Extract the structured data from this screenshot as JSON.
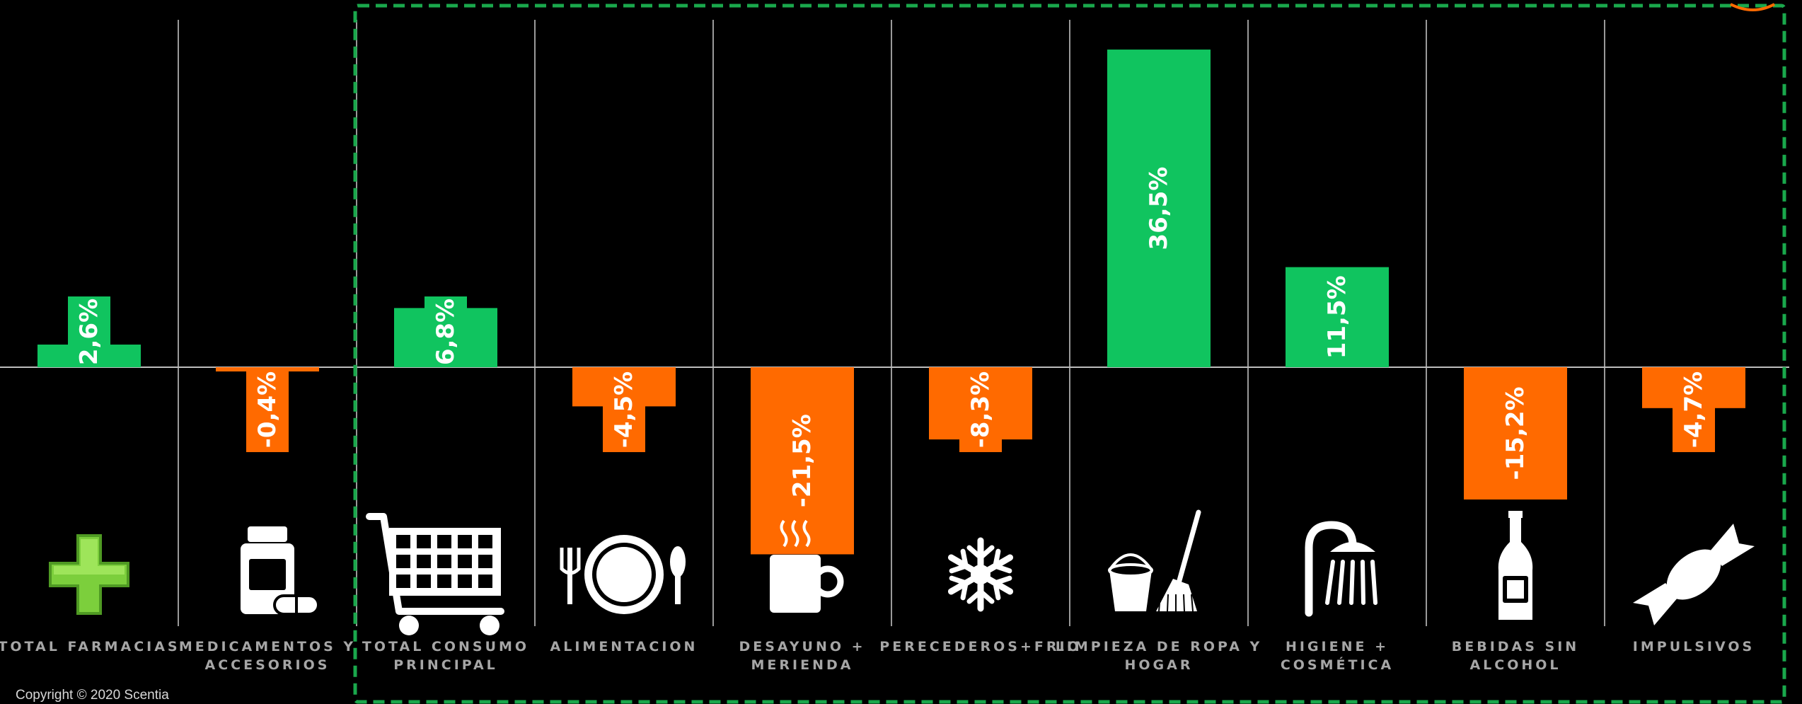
{
  "chart_data": {
    "type": "bar",
    "categories": [
      [
        "TOTAL FARMACIAS"
      ],
      [
        "MEDICAMENTOS Y",
        "ACCESORIOS"
      ],
      [
        "TOTAL CONSUMO",
        "PRINCIPAL"
      ],
      [
        "ALIMENTACION"
      ],
      [
        "DESAYUNO +",
        "MERIENDA"
      ],
      [
        "PERECEDEROS+FRIO"
      ],
      [
        "LIMPIEZA DE ROPA Y",
        "HOGAR"
      ],
      [
        "HIGIENE +",
        "COSMÉTICA"
      ],
      [
        "BEBIDAS SIN",
        "ALCOHOL"
      ],
      [
        "IMPULSIVOS"
      ]
    ],
    "values": [
      2.6,
      -0.4,
      6.8,
      -4.5,
      -21.5,
      -8.3,
      36.5,
      11.5,
      -15.2,
      -4.7
    ],
    "value_labels": [
      "2,6%",
      "-0,4%",
      "6,8%",
      "-4,5%",
      "-21,5%",
      "-8,3%",
      "36,5%",
      "11,5%",
      "-15,2%",
      "-4,7%"
    ],
    "icons": [
      "green-cross-icon",
      "medicine-bottle-icon",
      "shopping-cart-icon",
      "plate-cutlery-icon",
      "coffee-cup-icon",
      "snowflake-icon",
      "bucket-broom-icon",
      "shower-icon",
      "bottle-icon",
      "candy-icon"
    ],
    "ylim": [
      -40,
      40
    ],
    "grid": false,
    "colors": {
      "positive": "#10c45f",
      "negative": "#ff6a00",
      "background": "#000000",
      "highlight_box": "#1aa84c"
    }
  },
  "footer": {
    "copyright": "Copyright © 2020 Scentia"
  }
}
